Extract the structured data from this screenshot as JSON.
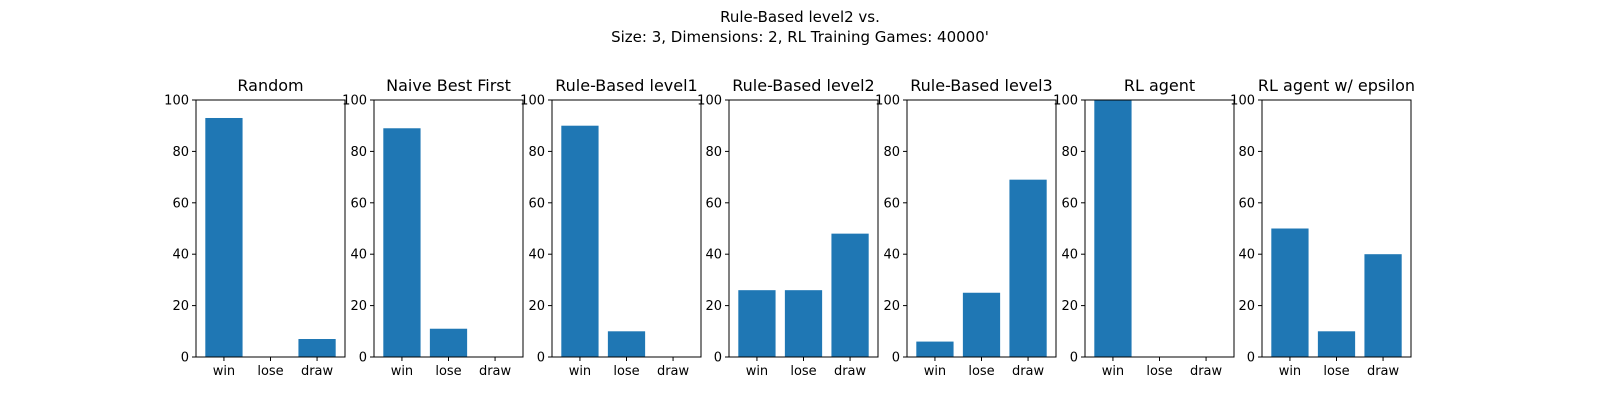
{
  "figure": {
    "title_line1": "Rule-Based level2 vs.",
    "title_line2": "Size: 3, Dimensions: 2, RL Training Games: 40000'"
  },
  "chart_data": [
    {
      "type": "bar",
      "title": "Random",
      "categories": [
        "win",
        "lose",
        "draw"
      ],
      "values": [
        93,
        0,
        7
      ],
      "ylim": [
        0,
        100
      ],
      "yticks": [
        0,
        20,
        40,
        60,
        80,
        100
      ],
      "color": "#1f77b4"
    },
    {
      "type": "bar",
      "title": "Naive Best First",
      "categories": [
        "win",
        "lose",
        "draw"
      ],
      "values": [
        89,
        11,
        0
      ],
      "ylim": [
        0,
        100
      ],
      "yticks": [
        0,
        20,
        40,
        60,
        80,
        100
      ],
      "color": "#1f77b4"
    },
    {
      "type": "bar",
      "title": "Rule-Based level1",
      "categories": [
        "win",
        "lose",
        "draw"
      ],
      "values": [
        90,
        10,
        0
      ],
      "ylim": [
        0,
        100
      ],
      "yticks": [
        0,
        20,
        40,
        60,
        80,
        100
      ],
      "color": "#1f77b4"
    },
    {
      "type": "bar",
      "title": "Rule-Based level2",
      "categories": [
        "win",
        "lose",
        "draw"
      ],
      "values": [
        26,
        26,
        48
      ],
      "ylim": [
        0,
        100
      ],
      "yticks": [
        0,
        20,
        40,
        60,
        80,
        100
      ],
      "color": "#1f77b4"
    },
    {
      "type": "bar",
      "title": "Rule-Based level3",
      "categories": [
        "win",
        "lose",
        "draw"
      ],
      "values": [
        6,
        25,
        69
      ],
      "ylim": [
        0,
        100
      ],
      "yticks": [
        0,
        20,
        40,
        60,
        80,
        100
      ],
      "color": "#1f77b4"
    },
    {
      "type": "bar",
      "title": "RL agent",
      "categories": [
        "win",
        "lose",
        "draw"
      ],
      "values": [
        100,
        0,
        0
      ],
      "ylim": [
        0,
        100
      ],
      "yticks": [
        0,
        20,
        40,
        60,
        80,
        100
      ],
      "color": "#1f77b4"
    },
    {
      "type": "bar",
      "title": "RL agent w/ epsilon",
      "categories": [
        "win",
        "lose",
        "draw"
      ],
      "values": [
        50,
        10,
        40
      ],
      "ylim": [
        0,
        100
      ],
      "yticks": [
        0,
        20,
        40,
        60,
        80,
        100
      ],
      "color": "#1f77b4"
    }
  ]
}
